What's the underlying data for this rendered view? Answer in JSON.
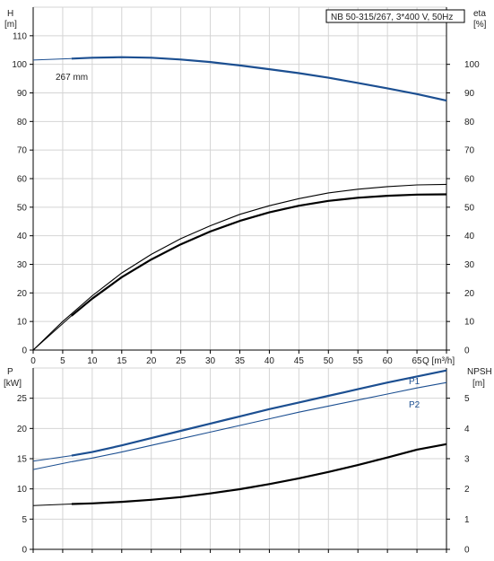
{
  "chart_data": [
    {
      "type": "line",
      "panel": "head-efficiency",
      "title": "NB 50-315/267, 3*400 V, 50Hz",
      "xlabel": "Q [m³/h]",
      "ylabel_left": [
        "H",
        "[m]"
      ],
      "ylabel_right": [
        "eta",
        "[%]"
      ],
      "xlim": [
        0,
        70
      ],
      "ylim_left": [
        0,
        120
      ],
      "ylim_right": [
        0,
        120
      ],
      "x_ticks": [
        0,
        5,
        10,
        15,
        20,
        25,
        30,
        35,
        40,
        45,
        50,
        55,
        60,
        65
      ],
      "y_ticks_left": [
        0,
        10,
        20,
        30,
        40,
        50,
        60,
        70,
        80,
        90,
        100,
        110
      ],
      "y_ticks_right": [
        0,
        10,
        20,
        30,
        40,
        50,
        60,
        70,
        80,
        90,
        100
      ],
      "grid": true,
      "series": [
        {
          "name": "267 mm",
          "axis": "left",
          "color": "#1c4f91",
          "thin_x": [
            0,
            6.5
          ],
          "thin_y": [
            101.5,
            102.0
          ],
          "x": [
            6.5,
            10,
            15,
            20,
            25,
            30,
            35,
            40,
            45,
            50,
            55,
            60,
            65,
            70
          ],
          "y": [
            102.0,
            102.3,
            102.5,
            102.3,
            101.7,
            100.8,
            99.6,
            98.3,
            96.9,
            95.3,
            93.5,
            91.6,
            89.6,
            87.3
          ]
        },
        {
          "name": "",
          "axis": "right",
          "color": "#000000",
          "thin_x": [
            0,
            6.5
          ],
          "thin_y": [
            0,
            12
          ],
          "x": [
            6.5,
            10,
            15,
            20,
            25,
            30,
            35,
            40,
            45,
            50,
            55,
            60,
            65,
            70
          ],
          "y": [
            12,
            18,
            25.5,
            31.7,
            37,
            41.5,
            45.2,
            48.2,
            50.5,
            52.2,
            53.3,
            54,
            54.4,
            54.5
          ]
        },
        {
          "name": "",
          "axis": "right",
          "color": "#000000",
          "x": [
            0,
            5,
            10,
            15,
            20,
            25,
            30,
            35,
            40,
            45,
            50,
            55,
            60,
            65,
            70
          ],
          "y": [
            0,
            10,
            19,
            27,
            33.5,
            39,
            43.5,
            47.5,
            50.5,
            53,
            55,
            56.3,
            57.2,
            57.8,
            58
          ]
        }
      ]
    },
    {
      "type": "line",
      "panel": "power-npsh",
      "xlabel": "",
      "ylabel_left": [
        "P",
        "[kW]"
      ],
      "ylabel_right": [
        "NPSH",
        "[m]"
      ],
      "xlim": [
        0,
        70
      ],
      "ylim_left": [
        0,
        30
      ],
      "ylim_right": [
        0,
        6
      ],
      "y_ticks_left": [
        0,
        5,
        10,
        15,
        20,
        25
      ],
      "y_ticks_right": [
        0,
        1,
        2,
        3,
        4,
        5
      ],
      "grid": true,
      "series": [
        {
          "name": "P1",
          "axis": "left",
          "color": "#1c4f91",
          "thin_x": [
            0,
            6.5
          ],
          "thin_y": [
            14.6,
            15.5
          ],
          "x": [
            6.5,
            10,
            15,
            20,
            25,
            30,
            35,
            40,
            45,
            50,
            55,
            60,
            65,
            70
          ],
          "y": [
            15.5,
            16.1,
            17.2,
            18.4,
            19.6,
            20.8,
            22.0,
            23.2,
            24.3,
            25.4,
            26.5,
            27.6,
            28.6,
            29.6
          ]
        },
        {
          "name": "P2",
          "axis": "left",
          "color": "#1c4f91",
          "thin_x": [
            0,
            6.5
          ],
          "thin_y": [
            13.2,
            14.5
          ],
          "x": [
            6.5,
            10,
            15,
            20,
            25,
            30,
            35,
            40,
            45,
            50,
            55,
            60,
            65,
            70
          ],
          "y": [
            14.5,
            15.1,
            16.1,
            17.2,
            18.3,
            19.4,
            20.5,
            21.6,
            22.7,
            23.7,
            24.7,
            25.7,
            26.7,
            27.6
          ]
        },
        {
          "name": "",
          "axis": "right",
          "color": "#000000",
          "thin_x": [
            0,
            6.5
          ],
          "thin_y": [
            1.45,
            1.5
          ],
          "x": [
            6.5,
            10,
            15,
            20,
            25,
            30,
            35,
            40,
            45,
            50,
            55,
            60,
            65,
            70
          ],
          "y": [
            1.5,
            1.52,
            1.57,
            1.64,
            1.73,
            1.85,
            1.99,
            2.16,
            2.35,
            2.56,
            2.79,
            3.04,
            3.3,
            3.48
          ]
        }
      ]
    }
  ]
}
